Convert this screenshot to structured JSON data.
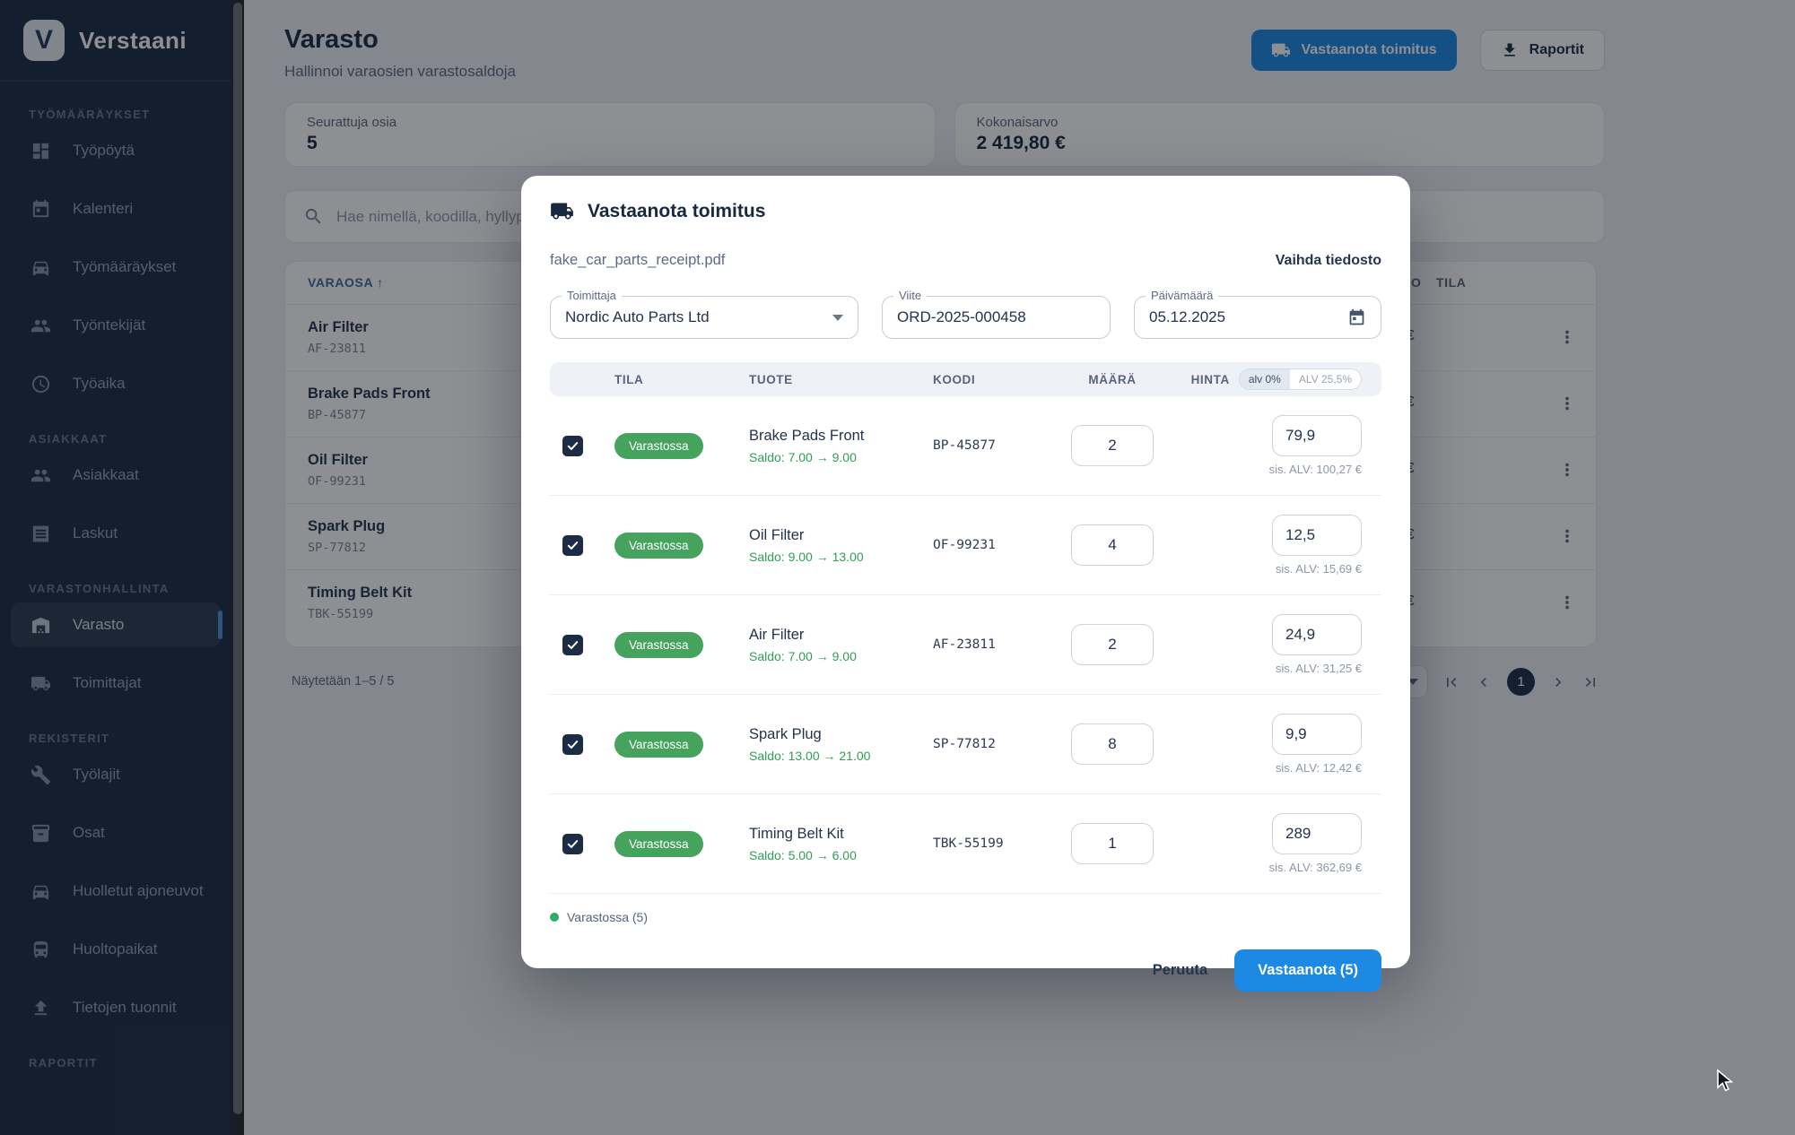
{
  "app": {
    "name": "Verstaani",
    "logo_letter": "V"
  },
  "colors": {
    "sidebar_bg": "#1a2b42",
    "primary_blue": "#1e88e5",
    "navy": "#1b2c44",
    "badge_green": "#46a35e",
    "saldo_green": "#2f9e55",
    "page_bg": "#eef0f4",
    "active_indicator": "#4f8fd6"
  },
  "sidebar": {
    "entries": [
      {
        "type": "section",
        "label": "TYÖMÄÄRÄYKSET"
      },
      {
        "type": "item",
        "label": "Työpöytä",
        "icon": "dashboard"
      },
      {
        "type": "item",
        "label": "Kalenteri",
        "icon": "calendar"
      },
      {
        "type": "item",
        "label": "Työmääräykset",
        "icon": "car"
      },
      {
        "type": "item",
        "label": "Työntekijät",
        "icon": "people"
      },
      {
        "type": "item",
        "label": "Työaika",
        "icon": "clock"
      },
      {
        "type": "section",
        "label": "ASIAKKAAT"
      },
      {
        "type": "item",
        "label": "Asiakkaat",
        "icon": "people"
      },
      {
        "type": "item",
        "label": "Laskut",
        "icon": "receipt"
      },
      {
        "type": "section",
        "label": "VARASTONHALLINTA"
      },
      {
        "type": "item",
        "label": "Varasto",
        "icon": "warehouse",
        "active": true
      },
      {
        "type": "item",
        "label": "Toimittajat",
        "icon": "truck"
      },
      {
        "type": "section",
        "label": "REKISTERIT"
      },
      {
        "type": "item",
        "label": "Työlajit",
        "icon": "wrench"
      },
      {
        "type": "item",
        "label": "Osat",
        "icon": "inventory"
      },
      {
        "type": "item",
        "label": "Huolletut ajoneuvot",
        "icon": "car"
      },
      {
        "type": "item",
        "label": "Huoltopaikat",
        "icon": "garage"
      },
      {
        "type": "item",
        "label": "Tietojen tuonnit",
        "icon": "upload"
      },
      {
        "type": "section",
        "label": "RAPORTIT"
      }
    ]
  },
  "header": {
    "title": "Varasto",
    "subtitle": "Hallinnoi varaosien varastosaldoja",
    "receive_button": "Vastaanota toimitus",
    "reports_button": "Raportit"
  },
  "stats": [
    {
      "label": "Seurattuja osia",
      "value": "5"
    },
    {
      "label": "Kokonaisarvo",
      "value": "2 419,80 €"
    }
  ],
  "search": {
    "placeholder": "Hae nimellä, koodilla, hyllypaikalla..."
  },
  "inventory_table": {
    "sort_header": "VARAOSA ↑",
    "partial_headers": [
      "O",
      "TILA"
    ],
    "rows": [
      {
        "name": "Air Filter",
        "code": "AF-23811",
        "value_visible": "€"
      },
      {
        "name": "Brake Pads Front",
        "code": "BP-45877",
        "value_visible": "€"
      },
      {
        "name": "Oil Filter",
        "code": "OF-99231",
        "value_visible": "€"
      },
      {
        "name": "Spark Plug",
        "code": "SP-77812",
        "value_visible": "€"
      },
      {
        "name": "Timing Belt Kit",
        "code": "TBK-55199",
        "value_visible": "€"
      }
    ],
    "footer_text": "Näytetään 1–5 / 5",
    "pagination": {
      "current_page": "1"
    }
  },
  "modal": {
    "title": "Vastaanota toimitus",
    "file_name": "fake_car_parts_receipt.pdf",
    "change_file_label": "Vaihda tiedosto",
    "fields": {
      "supplier": {
        "label": "Toimittaja",
        "value": "Nordic Auto Parts Ltd"
      },
      "reference": {
        "label": "Viite",
        "value": "ORD-2025-000458"
      },
      "date": {
        "label": "Päivämäärä",
        "value": "05.12.2025"
      }
    },
    "table": {
      "headers": {
        "status": "TILA",
        "product": "TUOTE",
        "code": "KOODI",
        "qty": "MÄÄRÄ",
        "price": "HINTA"
      },
      "vat_toggle": {
        "options": [
          "alv 0%",
          "ALV 25,5%"
        ],
        "selected": "alv 0%"
      },
      "rows": [
        {
          "checked": true,
          "status": "Varastossa",
          "product": "Brake Pads Front",
          "saldo": "Saldo: 7.00 → 9.00",
          "code": "BP-45877",
          "qty": "2",
          "price": "79,9",
          "vat_info": "sis. ALV: 100,27 €"
        },
        {
          "checked": true,
          "status": "Varastossa",
          "product": "Oil Filter",
          "saldo": "Saldo: 9.00 → 13.00",
          "code": "OF-99231",
          "qty": "4",
          "price": "12,5",
          "vat_info": "sis. ALV: 15,69 €"
        },
        {
          "checked": true,
          "status": "Varastossa",
          "product": "Air Filter",
          "saldo": "Saldo: 7.00 → 9.00",
          "code": "AF-23811",
          "qty": "2",
          "price": "24,9",
          "vat_info": "sis. ALV: 31,25 €"
        },
        {
          "checked": true,
          "status": "Varastossa",
          "product": "Spark Plug",
          "saldo": "Saldo: 13.00 → 21.00",
          "code": "SP-77812",
          "qty": "8",
          "price": "9,9",
          "vat_info": "sis. ALV: 12,42 €"
        },
        {
          "checked": true,
          "status": "Varastossa",
          "product": "Timing Belt Kit",
          "saldo": "Saldo: 5.00 → 6.00",
          "code": "TBK-55199",
          "qty": "1",
          "price": "289",
          "vat_info": "sis. ALV: 362,69 €"
        }
      ]
    },
    "legend": "Varastossa (5)",
    "cancel_button": "Peruuta",
    "submit_button": "Vastaanota (5)"
  }
}
